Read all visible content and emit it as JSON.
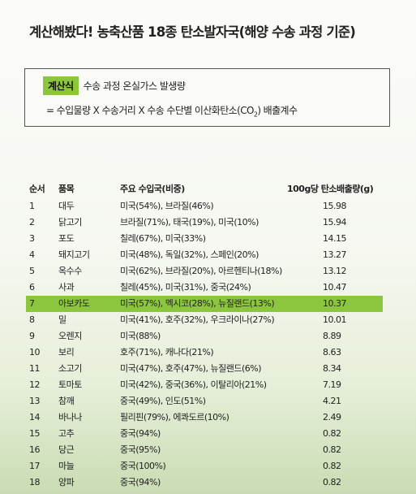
{
  "title": "계산해봤다! 농축산품 18종 탄소발자국(해양 수송 과정 기준)",
  "formula": {
    "tag": "계산식",
    "line1": "수송 과정 온실가스 발생량",
    "line2_prefix": "= 수입물량 X 수송거리 X 수송 수단별 이산화탄소(CO",
    "line2_sub": "2",
    "line2_suffix": ") 배출계수"
  },
  "table": {
    "headers": {
      "no": "순서",
      "item": "품목",
      "countries": "주요 수입국(비중)",
      "emission": "100g당 탄소배출량(g)"
    },
    "rows": [
      {
        "no": "1",
        "item": "대두",
        "countries": "미국(54%), 브라질(46%)",
        "emission": "15.98",
        "highlight": false
      },
      {
        "no": "2",
        "item": "닭고기",
        "countries": "브라질(71%), 태국(19%), 미국(10%)",
        "emission": "15.94",
        "highlight": false
      },
      {
        "no": "3",
        "item": "포도",
        "countries": "칠레(67%), 미국(33%)",
        "emission": "14.15",
        "highlight": false
      },
      {
        "no": "4",
        "item": "돼지고기",
        "countries": "미국(48%), 독일(32%), 스페인(20%)",
        "emission": "13.27",
        "highlight": false
      },
      {
        "no": "5",
        "item": "옥수수",
        "countries": "미국(62%), 브라질(20%), 아르헨티나(18%)",
        "emission": "13.12",
        "highlight": false
      },
      {
        "no": "6",
        "item": "사과",
        "countries": "칠레(45%), 미국(31%), 중국(24%)",
        "emission": "10.47",
        "highlight": false
      },
      {
        "no": "7",
        "item": "아보카도",
        "countries": "미국(57%), 멕시코(28%), 뉴질랜드(13%)",
        "emission": "10.37",
        "highlight": true
      },
      {
        "no": "8",
        "item": "밀",
        "countries": "미국(41%), 호주(32%), 우크라이나(27%)",
        "emission": "10.01",
        "highlight": false
      },
      {
        "no": "9",
        "item": "오렌지",
        "countries": "미국(88%)",
        "emission": "8.89",
        "highlight": false
      },
      {
        "no": "10",
        "item": "보리",
        "countries": "호주(71%), 캐나다(21%)",
        "emission": "8.63",
        "highlight": false
      },
      {
        "no": "11",
        "item": "소고기",
        "countries": "미국(47%), 호주(47%), 뉴질랜드(6%)",
        "emission": "8.34",
        "highlight": false
      },
      {
        "no": "12",
        "item": "토마토",
        "countries": "미국(42%), 중국(36%), 이탈리아(21%)",
        "emission": "7.19",
        "highlight": false
      },
      {
        "no": "13",
        "item": "참깨",
        "countries": "중국(49%), 인도(51%)",
        "emission": "4.21",
        "highlight": false
      },
      {
        "no": "14",
        "item": "바나나",
        "countries": "필리핀(79%), 에콰도르(10%)",
        "emission": "2.49",
        "highlight": false
      },
      {
        "no": "15",
        "item": "고추",
        "countries": "중국(94%)",
        "emission": "0.82",
        "highlight": false
      },
      {
        "no": "16",
        "item": "당근",
        "countries": "중국(95%)",
        "emission": "0.82",
        "highlight": false
      },
      {
        "no": "17",
        "item": "마늘",
        "countries": "중국(100%)",
        "emission": "0.82",
        "highlight": false
      },
      {
        "no": "18",
        "item": "양파",
        "countries": "중국(94%)",
        "emission": "0.82",
        "highlight": false
      }
    ]
  }
}
